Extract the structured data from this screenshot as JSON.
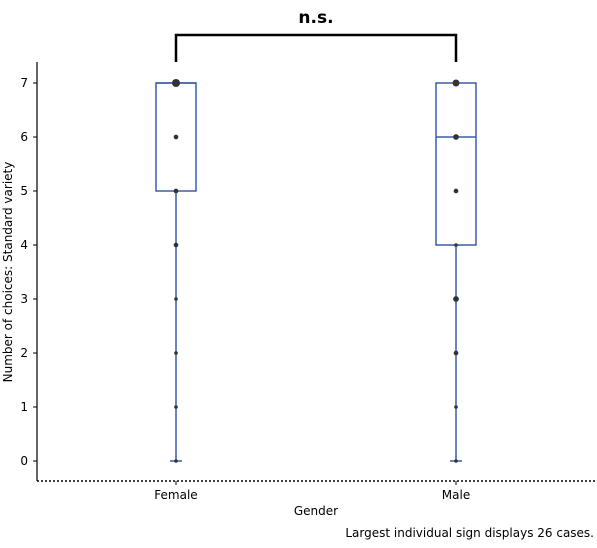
{
  "chart_data": {
    "type": "boxplot",
    "xlabel": "Gender",
    "ylabel": "Number of choices: Standard variety",
    "categories": [
      "Female",
      "Male"
    ],
    "ylim": [
      0,
      7
    ],
    "yticks": [
      0,
      1,
      2,
      3,
      4,
      5,
      6,
      7
    ],
    "boxes": [
      {
        "category": "Female",
        "min": 0,
        "q1": 5,
        "median": 7,
        "q3": 7,
        "max": 7
      },
      {
        "category": "Male",
        "min": 0,
        "q1": 4,
        "median": 6,
        "q3": 7,
        "max": 7
      }
    ],
    "points": [
      {
        "category": "Female",
        "values": [
          0,
          1,
          2,
          3,
          4,
          5,
          6,
          7
        ],
        "sizes": [
          1,
          1,
          1,
          1,
          2,
          2,
          2,
          5
        ]
      },
      {
        "category": "Male",
        "values": [
          0,
          1,
          2,
          3,
          4,
          5,
          6,
          7
        ],
        "sizes": [
          1,
          1,
          2,
          3,
          1,
          2,
          3,
          4
        ]
      }
    ],
    "significance": "n.s.",
    "note": "Largest individual sign displays 26 cases.",
    "grid": false,
    "colors": {
      "box": "#3a5fa8",
      "points": "#333333",
      "axis": "#000000"
    }
  }
}
